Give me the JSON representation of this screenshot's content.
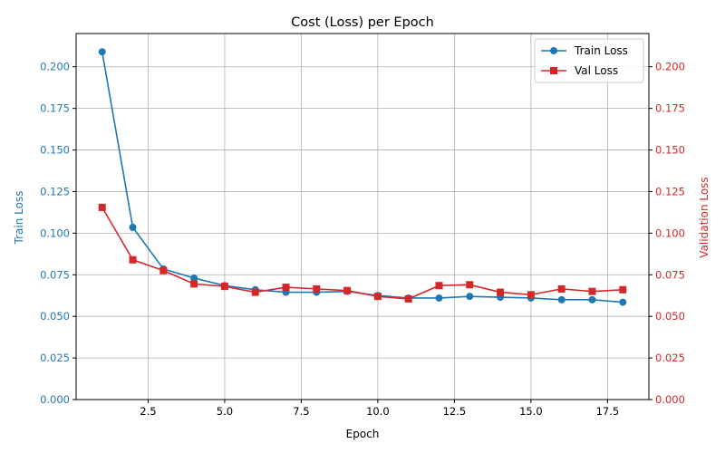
{
  "chart_data": {
    "type": "line",
    "title": "Cost (Loss) per Epoch",
    "xlabel": "Epoch",
    "ylabel_left": "Train Loss",
    "ylabel_right": "Validation Loss",
    "xlim": [
      0.15,
      18.85
    ],
    "ylim": [
      0,
      0.22
    ],
    "grid": true,
    "legend_position": "top-right",
    "x_ticks": [
      2.5,
      5.0,
      7.5,
      10.0,
      12.5,
      15.0,
      17.5
    ],
    "x_tick_labels": [
      "2.5",
      "5.0",
      "7.5",
      "10.0",
      "12.5",
      "15.0",
      "17.5"
    ],
    "y_ticks": [
      0,
      0.025,
      0.05,
      0.075,
      0.1,
      0.125,
      0.15,
      0.175,
      0.2
    ],
    "y_tick_labels": [
      "0.000",
      "0.025",
      "0.050",
      "0.075",
      "0.100",
      "0.125",
      "0.150",
      "0.175",
      "0.200"
    ],
    "x": [
      1,
      2,
      3,
      4,
      5,
      6,
      7,
      8,
      9,
      10,
      11,
      12,
      13,
      14,
      15,
      16,
      17,
      18
    ],
    "series": [
      {
        "name": "Train Loss",
        "axis": "left",
        "color": "#1f77b4",
        "marker": "circle",
        "values": [
          0.209,
          0.1035,
          0.0785,
          0.073,
          0.0685,
          0.066,
          0.0645,
          0.0645,
          0.065,
          0.0625,
          0.061,
          0.061,
          0.062,
          0.0615,
          0.061,
          0.06,
          0.06,
          0.0585
        ]
      },
      {
        "name": "Val Loss",
        "axis": "right",
        "color": "#d62728",
        "marker": "square",
        "values": [
          0.1155,
          0.084,
          0.0775,
          0.0695,
          0.068,
          0.0645,
          0.0675,
          0.0665,
          0.0655,
          0.062,
          0.0605,
          0.0685,
          0.069,
          0.0645,
          0.063,
          0.0665,
          0.065,
          0.066
        ]
      }
    ]
  }
}
